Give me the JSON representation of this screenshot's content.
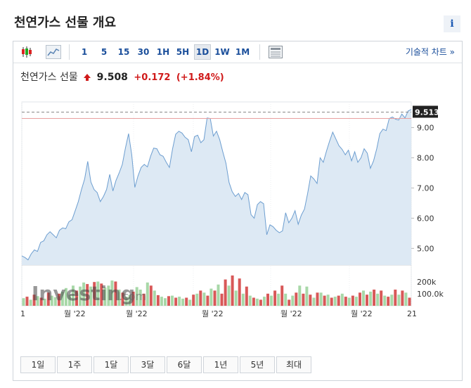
{
  "page_title": "천연가스 선물 개요",
  "info_icon_label": "i",
  "toolbar": {
    "icons": [
      "candlestick-icon",
      "area-chart-icon"
    ],
    "intervals": [
      "1",
      "5",
      "15",
      "30",
      "1H",
      "5H",
      "1D",
      "1W",
      "1M"
    ],
    "active_interval": "1D",
    "layout_icon": "chart-layout-icon",
    "technical_link": "기술적 차트 »"
  },
  "quote": {
    "name": "천연가스 선물",
    "last": "9.508",
    "change": "+0.172",
    "change_pct": "(+1.84%)",
    "up_color": "#d01a1a"
  },
  "watermark": {
    "brand": "Investing",
    "suffix": ".com"
  },
  "range_buttons": [
    "1일",
    "1주",
    "1달",
    "3달",
    "6달",
    "1년",
    "5년",
    "최대"
  ],
  "chart_data": {
    "type": "area",
    "x_tick_labels": [
      "1",
      "월 '22",
      "월 '22",
      "월 '22",
      "월 '22",
      "월 '22",
      "21"
    ],
    "y_ticks": [
      5.0,
      6.0,
      7.0,
      8.0,
      9.0
    ],
    "y_tick_labels": [
      "5.00",
      "6.00",
      "7.00",
      "8.00",
      "9.00"
    ],
    "ylim": [
      4.45,
      9.85
    ],
    "current_price": 9.513,
    "current_price_label": "9.513",
    "area_color": "#dde9f4",
    "line_color": "#6d9ed0",
    "series": [
      {
        "values": [
          4.75,
          4.7,
          4.62,
          4.82,
          4.95,
          4.9,
          5.2,
          5.25,
          5.45,
          5.55,
          5.45,
          5.35,
          5.6,
          5.68,
          5.65,
          5.88,
          5.95,
          6.25,
          6.55,
          6.95,
          7.3,
          7.88,
          7.2,
          6.95,
          6.85,
          6.55,
          6.72,
          6.95,
          7.45,
          6.9,
          7.25,
          7.5,
          7.78,
          8.32,
          8.8,
          8.1,
          7.02,
          7.4,
          7.68,
          7.78,
          7.7,
          8.05,
          8.32,
          8.3,
          8.1,
          8.05,
          7.85,
          7.68,
          8.3,
          8.78,
          8.88,
          8.82,
          8.68,
          8.6,
          8.2,
          8.7,
          8.75,
          8.5,
          8.6,
          9.32,
          9.3,
          8.72,
          8.88,
          8.6,
          8.2,
          7.82,
          7.18,
          6.88,
          6.72,
          6.82,
          6.62,
          6.85,
          6.78,
          6.12,
          6.0,
          6.45,
          6.55,
          6.48,
          5.45,
          5.78,
          5.72,
          5.6,
          5.52,
          5.58,
          6.18,
          5.85,
          6.0,
          6.25,
          5.8,
          6.1,
          6.3,
          6.82,
          7.4,
          7.3,
          7.15,
          8.0,
          7.85,
          8.22,
          8.55,
          8.85,
          8.62,
          8.4,
          8.28,
          8.1,
          8.25,
          7.9,
          8.2,
          7.85,
          8.0,
          8.3,
          8.15,
          7.65,
          7.9,
          8.3,
          8.8,
          8.95,
          8.9,
          9.3,
          9.35,
          9.28,
          9.25,
          9.45,
          9.32,
          9.55,
          9.6
        ]
      }
    ],
    "volume": {
      "axis_labels": [
        "200k",
        "100.0k"
      ],
      "up_color": "#a8d8a8",
      "down_color": "#d85858",
      "bars": [
        {
          "v": 75,
          "d": false
        },
        {
          "v": 90,
          "d": true
        },
        {
          "v": 60,
          "d": false
        },
        {
          "v": 110,
          "d": true
        },
        {
          "v": 95,
          "d": false
        },
        {
          "v": 80,
          "d": true
        },
        {
          "v": 70,
          "d": false
        },
        {
          "v": 130,
          "d": true
        },
        {
          "v": 100,
          "d": false
        },
        {
          "v": 85,
          "d": false
        },
        {
          "v": 120,
          "d": true
        },
        {
          "v": 140,
          "d": false
        },
        {
          "v": 175,
          "d": false
        },
        {
          "v": 110,
          "d": false
        },
        {
          "v": 200,
          "d": false
        },
        {
          "v": 150,
          "d": true
        },
        {
          "v": 190,
          "d": false
        },
        {
          "v": 230,
          "d": false
        },
        {
          "v": 215,
          "d": true
        },
        {
          "v": 190,
          "d": false
        },
        {
          "v": 235,
          "d": true
        },
        {
          "v": 240,
          "d": false
        },
        {
          "v": 220,
          "d": true
        },
        {
          "v": 180,
          "d": false
        },
        {
          "v": 200,
          "d": false
        },
        {
          "v": 250,
          "d": false
        },
        {
          "v": 240,
          "d": true
        },
        {
          "v": 160,
          "d": false
        },
        {
          "v": 130,
          "d": true
        },
        {
          "v": 90,
          "d": false
        },
        {
          "v": 110,
          "d": false
        },
        {
          "v": 140,
          "d": true
        },
        {
          "v": 185,
          "d": false
        },
        {
          "v": 160,
          "d": false
        },
        {
          "v": 120,
          "d": true
        },
        {
          "v": 230,
          "d": false
        },
        {
          "v": 200,
          "d": true
        },
        {
          "v": 150,
          "d": false
        },
        {
          "v": 105,
          "d": true
        },
        {
          "v": 90,
          "d": false
        },
        {
          "v": 75,
          "d": false
        },
        {
          "v": 95,
          "d": true
        },
        {
          "v": 100,
          "d": false
        },
        {
          "v": 80,
          "d": true
        },
        {
          "v": 90,
          "d": false
        },
        {
          "v": 70,
          "d": false
        },
        {
          "v": 80,
          "d": true
        },
        {
          "v": 60,
          "d": false
        },
        {
          "v": 110,
          "d": true
        },
        {
          "v": 120,
          "d": false
        },
        {
          "v": 150,
          "d": true
        },
        {
          "v": 130,
          "d": false
        },
        {
          "v": 100,
          "d": true
        },
        {
          "v": 170,
          "d": false
        },
        {
          "v": 150,
          "d": true
        },
        {
          "v": 210,
          "d": false
        },
        {
          "v": 120,
          "d": true
        },
        {
          "v": 260,
          "d": true
        },
        {
          "v": 200,
          "d": false
        },
        {
          "v": 300,
          "d": true
        },
        {
          "v": 150,
          "d": false
        },
        {
          "v": 270,
          "d": true
        },
        {
          "v": 120,
          "d": false
        },
        {
          "v": 190,
          "d": true
        },
        {
          "v": 100,
          "d": false
        },
        {
          "v": 80,
          "d": true
        },
        {
          "v": 70,
          "d": false
        },
        {
          "v": 60,
          "d": true
        },
        {
          "v": 90,
          "d": false
        },
        {
          "v": 120,
          "d": true
        },
        {
          "v": 100,
          "d": false
        },
        {
          "v": 150,
          "d": true
        },
        {
          "v": 120,
          "d": false
        },
        {
          "v": 200,
          "d": true
        },
        {
          "v": 120,
          "d": false
        },
        {
          "v": 60,
          "d": true
        },
        {
          "v": 100,
          "d": false
        },
        {
          "v": 130,
          "d": true
        },
        {
          "v": 200,
          "d": false
        },
        {
          "v": 120,
          "d": true
        },
        {
          "v": 190,
          "d": false
        },
        {
          "v": 110,
          "d": true
        },
        {
          "v": 80,
          "d": false
        },
        {
          "v": 130,
          "d": true
        },
        {
          "v": 130,
          "d": false
        },
        {
          "v": 100,
          "d": true
        },
        {
          "v": 110,
          "d": false
        },
        {
          "v": 80,
          "d": true
        },
        {
          "v": 90,
          "d": false
        },
        {
          "v": 100,
          "d": true
        },
        {
          "v": 120,
          "d": false
        },
        {
          "v": 90,
          "d": true
        },
        {
          "v": 80,
          "d": false
        },
        {
          "v": 100,
          "d": true
        },
        {
          "v": 90,
          "d": false
        },
        {
          "v": 130,
          "d": true
        },
        {
          "v": 150,
          "d": false
        },
        {
          "v": 110,
          "d": true
        },
        {
          "v": 140,
          "d": false
        },
        {
          "v": 160,
          "d": true
        },
        {
          "v": 120,
          "d": false
        },
        {
          "v": 150,
          "d": true
        },
        {
          "v": 100,
          "d": false
        },
        {
          "v": 90,
          "d": true
        },
        {
          "v": 110,
          "d": false
        },
        {
          "v": 160,
          "d": true
        },
        {
          "v": 110,
          "d": false
        },
        {
          "v": 150,
          "d": true
        },
        {
          "v": 130,
          "d": false
        },
        {
          "v": 80,
          "d": true
        }
      ]
    }
  }
}
